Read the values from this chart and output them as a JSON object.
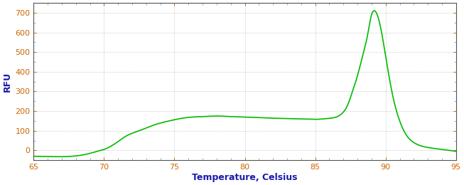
{
  "xlabel": "Temperature, Celsius",
  "ylabel": "RFU",
  "xlim": [
    65,
    95
  ],
  "ylim": [
    -50,
    750
  ],
  "yticks": [
    0,
    100,
    200,
    300,
    400,
    500,
    600,
    700
  ],
  "xticks": [
    65,
    70,
    75,
    80,
    85,
    90,
    95
  ],
  "line_color": "#00bb00",
  "line_width": 1.2,
  "background_color": "#ffffff",
  "grid_color": "#888888",
  "axis_label_color": "#1a1aaa",
  "tick_label_color": "#cc6600",
  "xlabel_fontsize": 9,
  "ylabel_fontsize": 9,
  "tick_fontsize": 8
}
